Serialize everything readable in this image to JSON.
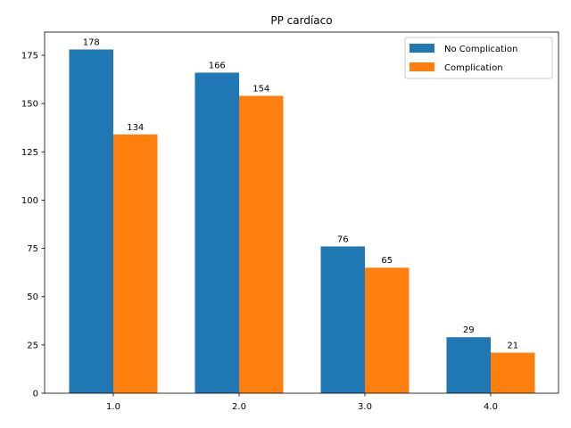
{
  "chart_data": {
    "type": "bar",
    "title": "PP cardíaco",
    "xlabel": "",
    "ylabel": "",
    "categories": [
      "1.0",
      "2.0",
      "3.0",
      "4.0"
    ],
    "series": [
      {
        "name": "No Complication",
        "values": [
          178,
          166,
          76,
          29
        ],
        "color": "#1f77b4"
      },
      {
        "name": "Complication",
        "values": [
          134,
          154,
          65,
          21
        ],
        "color": "#ff7f0e"
      }
    ],
    "ylim": [
      0,
      187
    ],
    "yticks": [
      0,
      25,
      50,
      75,
      100,
      125,
      150,
      175
    ],
    "grid": false,
    "legend_position": "top-right"
  }
}
